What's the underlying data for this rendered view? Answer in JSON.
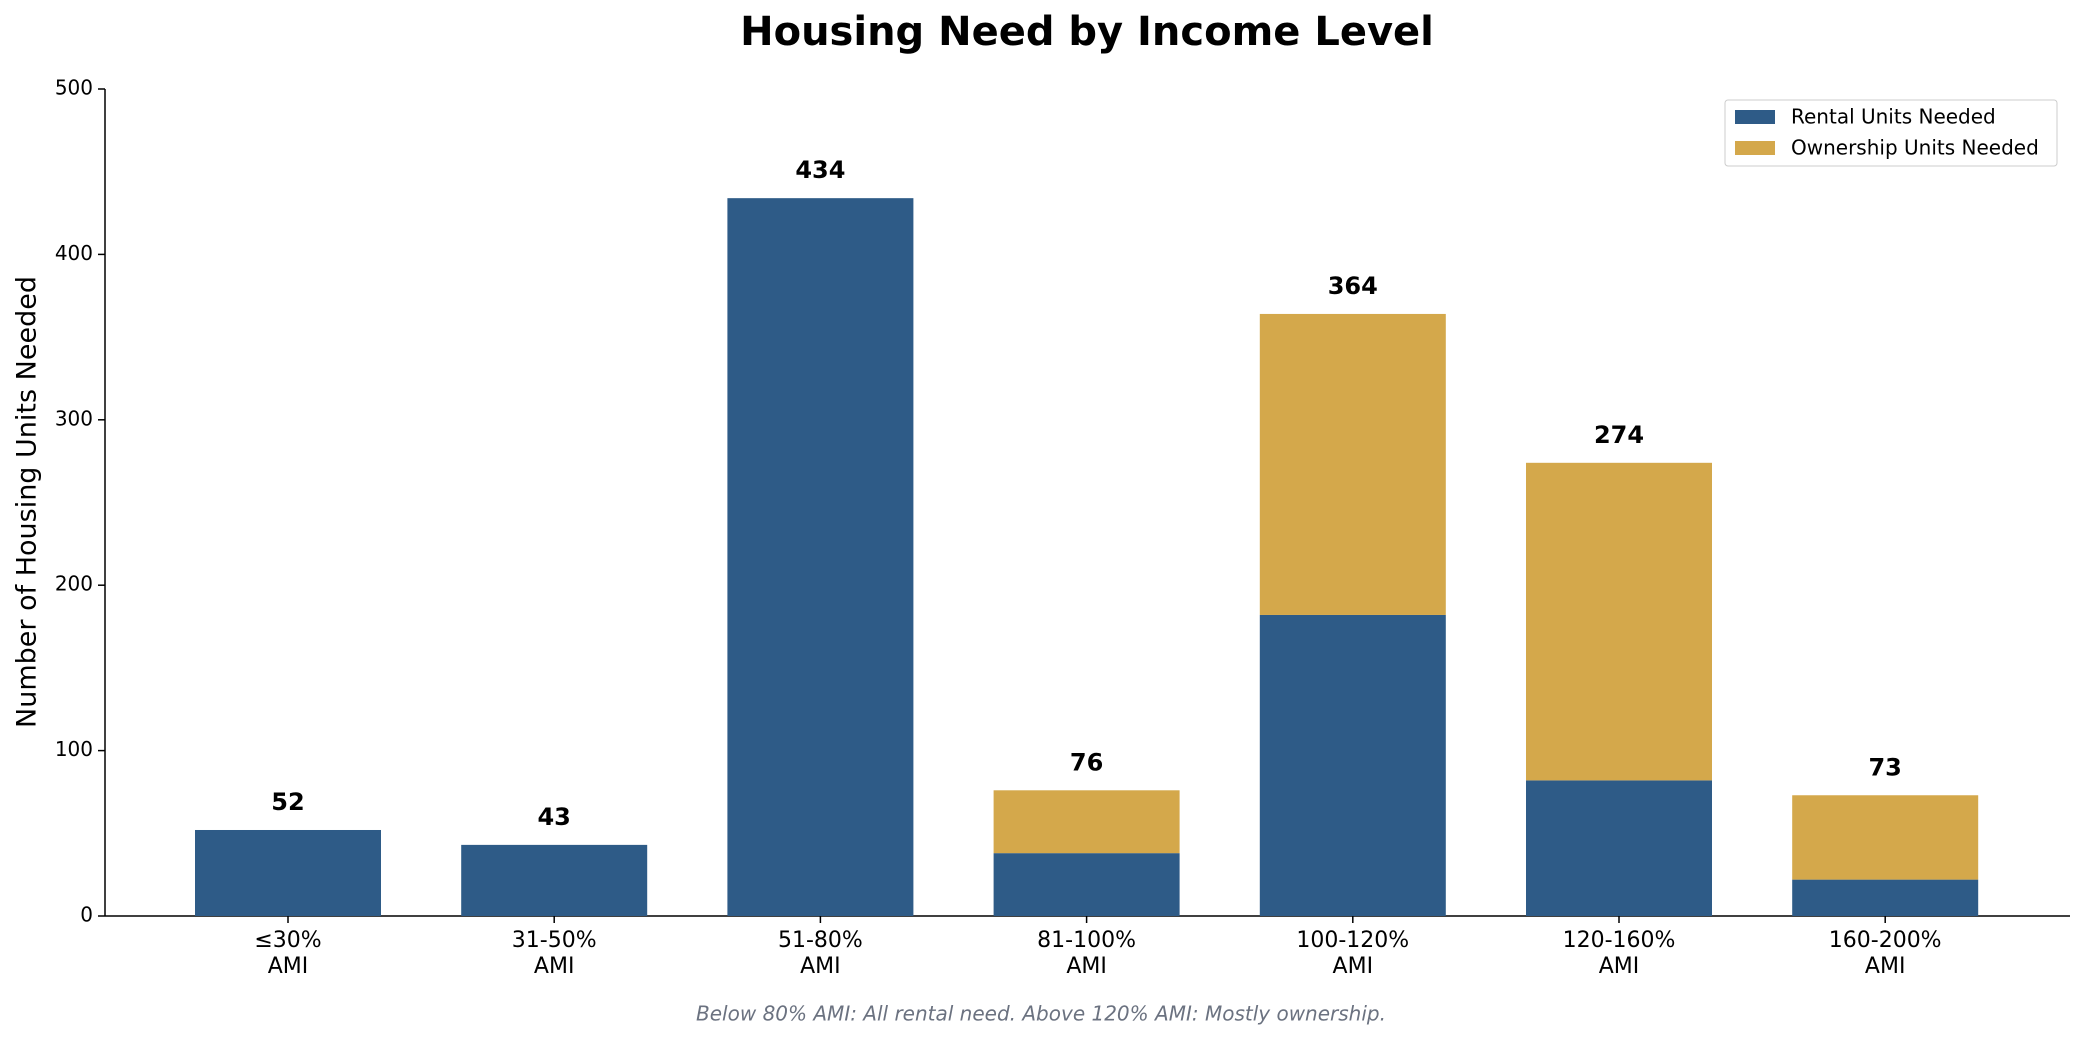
{
  "chart_data": {
    "type": "stacked-bar",
    "title": "Housing Need by Income Level",
    "ylabel": "Number of Housing Units Needed",
    "note": "Below 80% AMI: All rental need. Above 120% AMI: Mostly ownership.",
    "categories": [
      "≤30%\nAMI",
      "31-50%\nAMI",
      "51-80%\nAMI",
      "81-100%\nAMI",
      "100-120%\nAMI",
      "120-160%\nAMI",
      "160-200%\nAMI"
    ],
    "series": [
      {
        "name": "Rental Units Needed",
        "color": "#2e5b87",
        "values": [
          52,
          43,
          434,
          38,
          182,
          82,
          22
        ]
      },
      {
        "name": "Ownership Units Needed",
        "color": "#d4a84b",
        "values": [
          0,
          0,
          0,
          38,
          182,
          192,
          51
        ]
      }
    ],
    "totals": [
      52,
      43,
      434,
      76,
      364,
      274,
      73
    ],
    "ylim": [
      0,
      500
    ],
    "yticks": [
      0,
      100,
      200,
      300,
      400,
      500
    ],
    "grid": false,
    "legend": "upper right"
  }
}
